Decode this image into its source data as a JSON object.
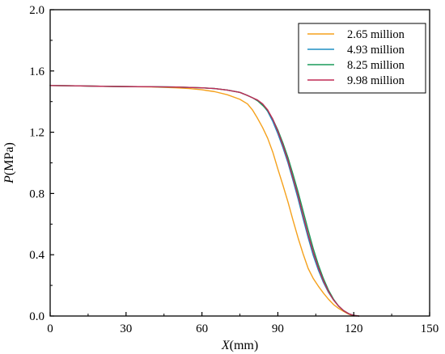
{
  "chart_data": {
    "type": "line",
    "xlabel_var": "X",
    "xlabel_unit": "(mm)",
    "ylabel_var": "P",
    "ylabel_unit": "(MPa)",
    "xlim": [
      0,
      150
    ],
    "ylim": [
      0,
      2.0
    ],
    "xticks": [
      0,
      30,
      60,
      90,
      120,
      150
    ],
    "xtick_labels": [
      "0",
      "30",
      "60",
      "90",
      "120",
      "150"
    ],
    "yticks": [
      0.0,
      0.4,
      0.8,
      1.2,
      1.6,
      2.0
    ],
    "ytick_labels": [
      "0.0",
      "0.4",
      "0.8",
      "1.2",
      "1.6",
      "2.0"
    ],
    "grid": false,
    "legend_position": "top-right",
    "series": [
      {
        "name": "2.65 million",
        "color": "#f5a11c",
        "x": [
          0,
          10,
          20,
          30,
          40,
          50,
          55,
          60,
          65,
          70,
          75,
          78,
          80,
          82,
          84,
          86,
          88,
          90,
          92,
          94,
          96,
          98,
          100,
          102,
          104,
          106,
          108,
          110,
          112,
          114,
          116,
          118,
          120
        ],
        "y": [
          1.505,
          1.503,
          1.5,
          1.498,
          1.496,
          1.49,
          1.485,
          1.477,
          1.465,
          1.445,
          1.415,
          1.385,
          1.345,
          1.29,
          1.23,
          1.16,
          1.07,
          0.96,
          0.855,
          0.745,
          0.625,
          0.51,
          0.405,
          0.31,
          0.245,
          0.195,
          0.15,
          0.11,
          0.075,
          0.05,
          0.03,
          0.012,
          0.0
        ]
      },
      {
        "name": "4.93 million",
        "color": "#1f8fc4",
        "x": [
          0,
          10,
          20,
          30,
          40,
          50,
          60,
          65,
          70,
          75,
          78,
          80,
          82,
          84,
          86,
          88,
          90,
          92,
          94,
          96,
          98,
          100,
          102,
          104,
          106,
          108,
          110,
          112,
          114,
          116,
          118,
          120,
          121
        ],
        "y": [
          1.505,
          1.503,
          1.5,
          1.498,
          1.497,
          1.495,
          1.49,
          1.485,
          1.475,
          1.46,
          1.44,
          1.425,
          1.405,
          1.38,
          1.335,
          1.27,
          1.19,
          1.1,
          1.0,
          0.885,
          0.765,
          0.635,
          0.51,
          0.395,
          0.3,
          0.22,
          0.155,
          0.105,
          0.065,
          0.035,
          0.015,
          0.004,
          0.0
        ]
      },
      {
        "name": "8.25 million",
        "color": "#1a9a5a",
        "x": [
          0,
          10,
          20,
          30,
          40,
          50,
          60,
          65,
          70,
          75,
          78,
          80,
          82,
          84,
          86,
          88,
          90,
          92,
          94,
          96,
          98,
          100,
          102,
          104,
          106,
          108,
          110,
          112,
          114,
          116,
          118,
          120,
          122
        ],
        "y": [
          1.505,
          1.503,
          1.5,
          1.498,
          1.497,
          1.495,
          1.49,
          1.485,
          1.475,
          1.46,
          1.44,
          1.425,
          1.405,
          1.375,
          1.34,
          1.285,
          1.215,
          1.13,
          1.035,
          0.925,
          0.81,
          0.685,
          0.56,
          0.44,
          0.335,
          0.245,
          0.17,
          0.11,
          0.065,
          0.035,
          0.015,
          0.004,
          0.0
        ]
      },
      {
        "name": "9.98 million",
        "color": "#c02a55",
        "x": [
          0,
          10,
          20,
          30,
          40,
          50,
          60,
          65,
          70,
          75,
          78,
          80,
          82,
          84,
          86,
          88,
          90,
          92,
          94,
          96,
          98,
          100,
          102,
          104,
          106,
          108,
          110,
          112,
          114,
          116,
          118,
          120,
          122
        ],
        "y": [
          1.505,
          1.503,
          1.5,
          1.498,
          1.497,
          1.495,
          1.49,
          1.485,
          1.475,
          1.46,
          1.44,
          1.425,
          1.41,
          1.385,
          1.345,
          1.285,
          1.205,
          1.115,
          1.015,
          0.9,
          0.785,
          0.655,
          0.53,
          0.415,
          0.315,
          0.23,
          0.16,
          0.105,
          0.065,
          0.035,
          0.015,
          0.004,
          0.0
        ]
      }
    ]
  }
}
